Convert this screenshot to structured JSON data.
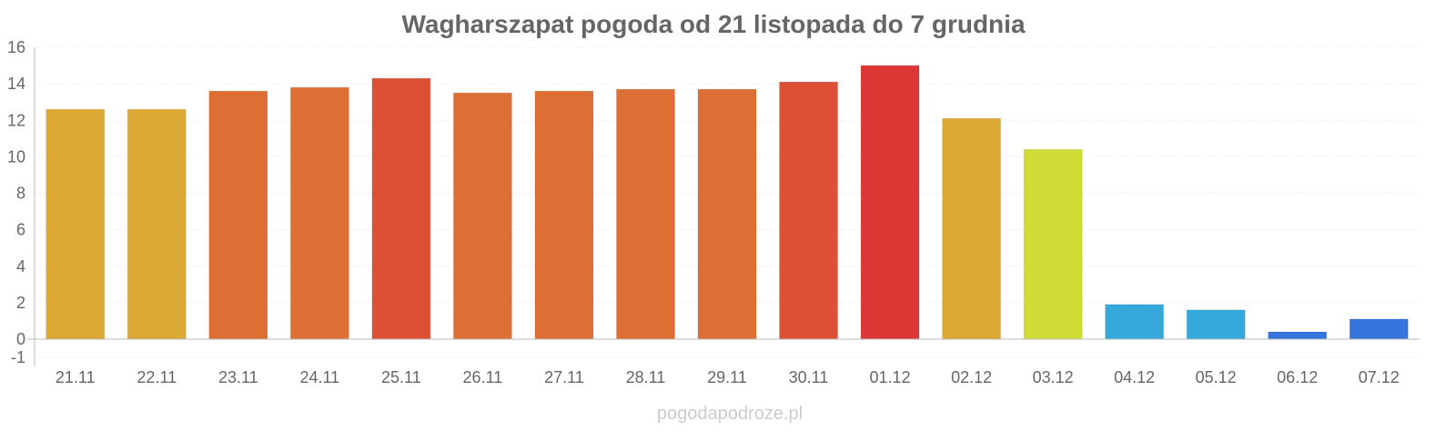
{
  "chart_data": {
    "type": "bar",
    "title": "Wagharszapat pogoda od 21 listopada do 7 grudnia",
    "xlabel": "",
    "ylabel": "",
    "ylim": [
      -1,
      16
    ],
    "yticks": [
      16,
      14,
      12,
      10,
      8,
      6,
      4,
      2,
      0,
      -1
    ],
    "grid": true,
    "categories": [
      "21.11",
      "22.11",
      "23.11",
      "24.11",
      "25.11",
      "26.11",
      "27.11",
      "28.11",
      "29.11",
      "30.11",
      "01.12",
      "02.12",
      "03.12",
      "04.12",
      "05.12",
      "06.12",
      "07.12"
    ],
    "values": [
      12.6,
      12.6,
      13.6,
      13.8,
      14.3,
      13.5,
      13.6,
      13.7,
      13.7,
      14.1,
      15.0,
      12.1,
      10.4,
      1.9,
      1.6,
      0.4,
      1.1
    ],
    "colors": [
      "#dca935",
      "#dca935",
      "#dd6f35",
      "#dd6f35",
      "#dc5034",
      "#dd6f35",
      "#dd6f35",
      "#dd6f35",
      "#dd6f35",
      "#dc5034",
      "#dc3735",
      "#dca935",
      "#cfdc35",
      "#35a8dc",
      "#35a8dc",
      "#3575dc",
      "#3575dc"
    ],
    "watermark": "pogodapodroze.pl"
  }
}
